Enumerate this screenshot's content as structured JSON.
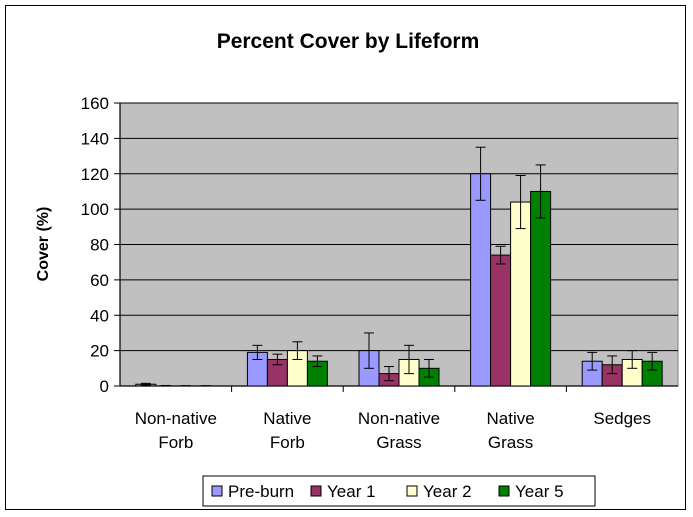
{
  "chart_data": {
    "type": "bar",
    "title": "Percent Cover by Lifeform",
    "ylabel": "Cover (%)",
    "xlabel": "",
    "ylim": [
      0,
      160
    ],
    "yticks": [
      0,
      20,
      40,
      60,
      80,
      100,
      120,
      140,
      160
    ],
    "categories": [
      [
        "Non-native",
        "Forb"
      ],
      [
        "Native",
        "Forb"
      ],
      [
        "Non-native",
        "Grass"
      ],
      [
        "Native",
        "Grass"
      ],
      [
        "Sedges"
      ]
    ],
    "series": [
      {
        "name": "Pre-burn",
        "color": "#9999FF",
        "values": [
          1,
          19,
          20,
          120,
          14
        ],
        "errors": [
          0.5,
          4,
          10,
          15,
          5
        ]
      },
      {
        "name": "Year 1",
        "color": "#993366",
        "values": [
          0,
          15,
          7,
          74,
          12
        ],
        "errors": [
          0.3,
          3,
          4,
          5,
          5
        ]
      },
      {
        "name": "Year 2",
        "color": "#FFFFCC",
        "values": [
          0,
          20,
          15,
          104,
          15
        ],
        "errors": [
          0.2,
          5,
          8,
          15,
          5
        ]
      },
      {
        "name": "Year 5",
        "color": "#008000",
        "values": [
          0,
          14,
          10,
          110,
          14
        ],
        "errors": [
          0.2,
          3,
          5,
          15,
          5
        ]
      }
    ],
    "grid": true,
    "plot_background": "#C0C0C0",
    "legend_position": "bottom"
  }
}
